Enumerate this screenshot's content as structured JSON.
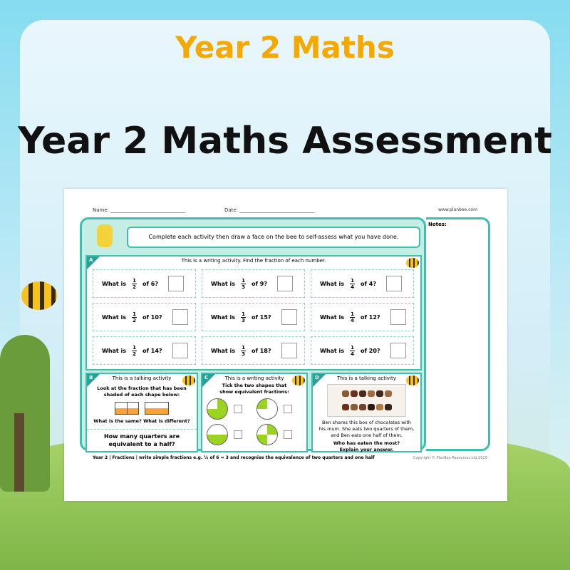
{
  "banner": {
    "subtitle": "Year 2 Maths",
    "title": "Year 2 Maths Assessment"
  },
  "worksheet": {
    "name_label": "Name: ______________________________",
    "date_label": "Date: ______________________________",
    "website": "www.planbee.com",
    "instruction": "Complete each activity then draw a face on the bee to self-assess what you have done.",
    "notes_label": "Notes:",
    "section_a": {
      "letter": "A",
      "heading": "This is a writing activity. Find the fraction of each number.",
      "questions": [
        {
          "prefix": "What is",
          "num": "1",
          "den": "2",
          "suffix": "of 6?"
        },
        {
          "prefix": "What is",
          "num": "1",
          "den": "3",
          "suffix": "of 9?"
        },
        {
          "prefix": "What is",
          "num": "1",
          "den": "4",
          "suffix": "of 4?"
        },
        {
          "prefix": "What is",
          "num": "1",
          "den": "2",
          "suffix": "of 10?"
        },
        {
          "prefix": "What is",
          "num": "1",
          "den": "3",
          "suffix": "of 15?"
        },
        {
          "prefix": "What is",
          "num": "1",
          "den": "4",
          "suffix": "of 12?"
        },
        {
          "prefix": "What is",
          "num": "1",
          "den": "2",
          "suffix": "of 14?"
        },
        {
          "prefix": "What is",
          "num": "1",
          "den": "3",
          "suffix": "of 18?"
        },
        {
          "prefix": "What is",
          "num": "1",
          "den": "4",
          "suffix": "of 20?"
        }
      ]
    },
    "section_b": {
      "letter": "B",
      "heading": "This is a talking activity",
      "prompt": "Look at the fraction that has been shaded of each shape below:",
      "question": "What is the same? What is different?",
      "question2": "How many quarters are equivalent to a half?"
    },
    "section_c": {
      "letter": "C",
      "heading": "This is a writing activity",
      "prompt": "Tick the two shapes that show equivalent fractions:"
    },
    "section_d": {
      "letter": "D",
      "heading": "This is a talking activity",
      "story": "Ben shares this box of chocolates with his mum. She eats two quarters of them, and Ben eats one half of them.",
      "question": "Who has eaten the most? Explain your answer."
    },
    "footer": "Year 2 | Fractions | write simple fractions e.g. ½ of 6 = 3 and recognise the equivalence of two quarters and one half",
    "copyright": "Copyright © PlanBee Resources Ltd 2019"
  },
  "colors": {
    "accent": "#f5a800",
    "teal": "#3cbfae",
    "shade_orange": "#f7a33a",
    "shade_green": "#9bd41e"
  }
}
